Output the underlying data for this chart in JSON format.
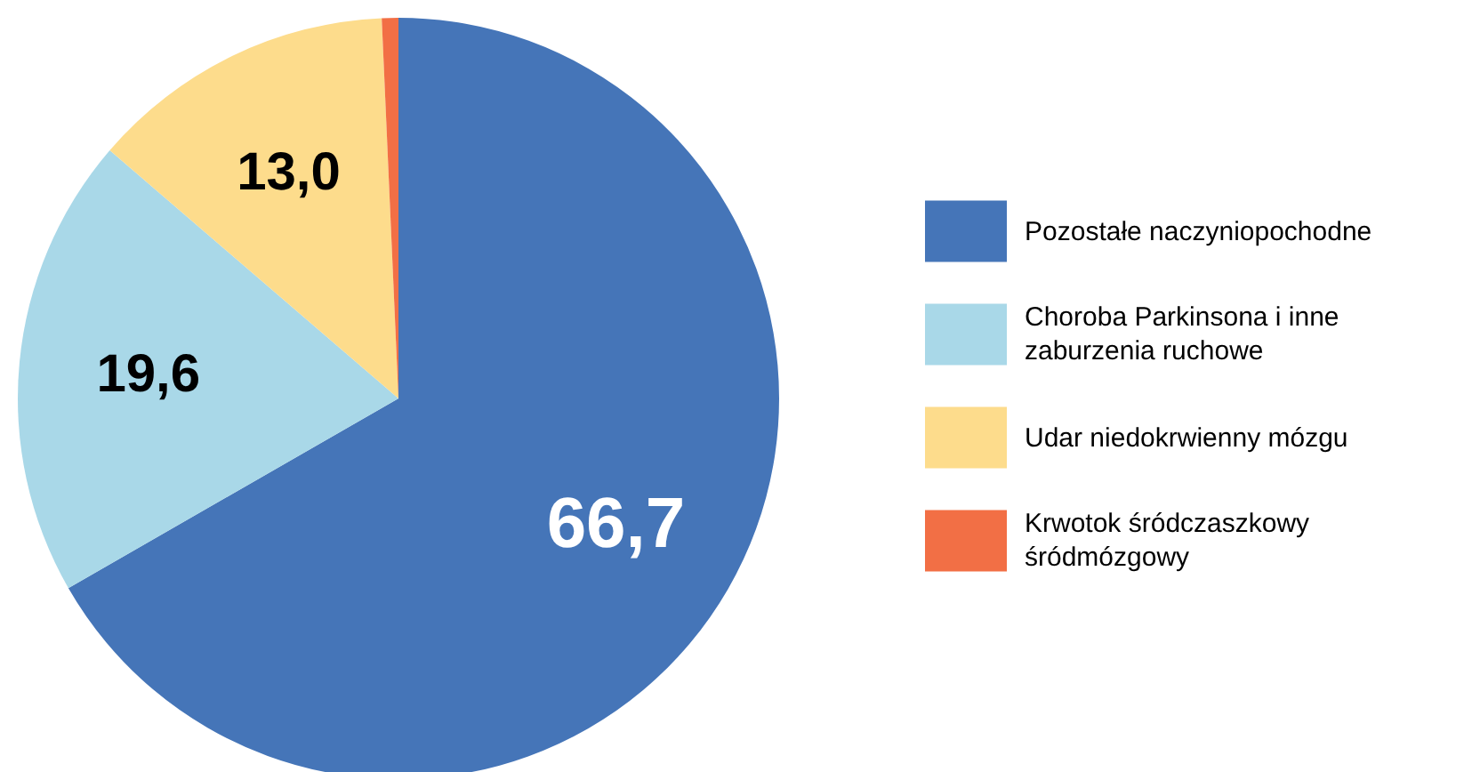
{
  "chart_data": {
    "type": "pie",
    "categories": [
      "Pozostałe naczyniopochodne",
      "Choroba Parkinsona i inne zaburzenia ruchowe",
      "Udar niedokrwienny mózgu",
      "Krwotok śródczaszkowy śródmózgowy"
    ],
    "values": [
      66.7,
      19.6,
      13.0,
      0.7
    ],
    "value_labels": [
      "66,7",
      "19,6",
      "13,0",
      null
    ],
    "colors": [
      "#4575b8",
      "#a9d8e8",
      "#fddc8c",
      "#f26f45"
    ],
    "legend": "right"
  }
}
